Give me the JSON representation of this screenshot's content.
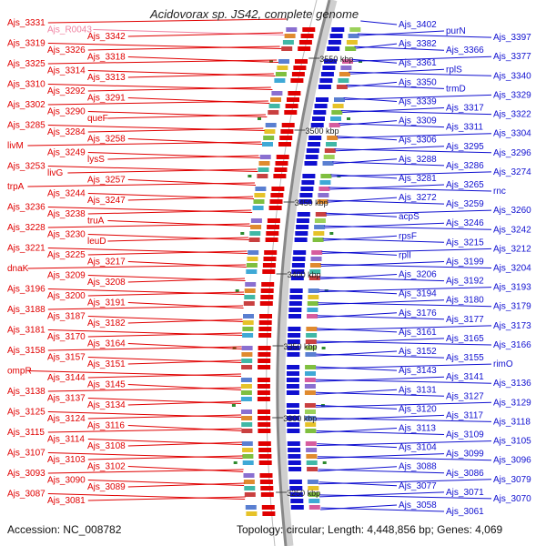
{
  "title": "Acidovorax sp. JS42, complete genome",
  "footer": {
    "accession": "Accession: NC_008782",
    "summary": "Topology: circular; Length: 4,448,856 bp; Genes: 4,069"
  },
  "colors": {
    "reverse_strand": "#e00000",
    "forward_strand": "#1010d0",
    "highlight_label": "#f080a0",
    "backbone": "#888888",
    "marker": "#2e8b2e"
  },
  "scale_labels": [
    "3550 kbp",
    "3500 kbp",
    "3450 kbp",
    "3400 kbp",
    "3350 kbp",
    "3300 kbp",
    "3250 kbp"
  ],
  "left_labels": [
    "Ajs_3331",
    "Ajs_R0043",
    "Ajs_3342",
    "Ajs_3319",
    "Ajs_3326",
    "Ajs_3318",
    "Ajs_3325",
    "Ajs_3314",
    "Ajs_3313",
    "Ajs_3310",
    "Ajs_3292",
    "Ajs_3291",
    "Ajs_3302",
    "Ajs_3290",
    "queF",
    "Ajs_3285",
    "Ajs_3284",
    "Ajs_3258",
    "livM",
    "Ajs_3249",
    "lysS",
    "Ajs_3253",
    "livG",
    "Ajs_3257",
    "trpA",
    "Ajs_3244",
    "Ajs_3247",
    "Ajs_3236",
    "Ajs_3238",
    "truA",
    "Ajs_3228",
    "Ajs_3230",
    "leuD",
    "Ajs_3221",
    "Ajs_3225",
    "Ajs_3217",
    "dnaK",
    "Ajs_3209",
    "Ajs_3208",
    "Ajs_3196",
    "Ajs_3200",
    "Ajs_3191",
    "Ajs_3188",
    "Ajs_3187",
    "Ajs_3182",
    "Ajs_3181",
    "Ajs_3170",
    "Ajs_3164",
    "Ajs_3158",
    "Ajs_3157",
    "Ajs_3151",
    "ompR",
    "Ajs_3144",
    "Ajs_3145",
    "Ajs_3138",
    "Ajs_3137",
    "Ajs_3134",
    "Ajs_3125",
    "Ajs_3124",
    "Ajs_3116",
    "Ajs_3115",
    "Ajs_3114",
    "Ajs_3108",
    "Ajs_3107",
    "Ajs_3103",
    "Ajs_3102",
    "Ajs_3093",
    "Ajs_3090",
    "Ajs_3089",
    "Ajs_3087",
    "Ajs_3081"
  ],
  "right_labels": [
    "Ajs_3402",
    "purN",
    "Ajs_3397",
    "Ajs_3382",
    "Ajs_3366",
    "Ajs_3377",
    "Ajs_3361",
    "rplS",
    "Ajs_3340",
    "Ajs_3350",
    "trmD",
    "Ajs_3329",
    "Ajs_3339",
    "Ajs_3317",
    "Ajs_3322",
    "Ajs_3309",
    "Ajs_3311",
    "Ajs_3304",
    "Ajs_3306",
    "Ajs_3295",
    "Ajs_3296",
    "Ajs_3288",
    "Ajs_3286",
    "Ajs_3274",
    "Ajs_3281",
    "Ajs_3265",
    "rnc",
    "Ajs_3272",
    "Ajs_3259",
    "Ajs_3260",
    "acpS",
    "Ajs_3246",
    "Ajs_3242",
    "rpsF",
    "Ajs_3215",
    "Ajs_3212",
    "rplI",
    "Ajs_3199",
    "Ajs_3204",
    "Ajs_3206",
    "Ajs_3192",
    "Ajs_3193",
    "Ajs_3194",
    "Ajs_3180",
    "Ajs_3179",
    "Ajs_3176",
    "Ajs_3177",
    "Ajs_3173",
    "Ajs_3161",
    "Ajs_3165",
    "Ajs_3166",
    "Ajs_3152",
    "Ajs_3155",
    "rimO",
    "Ajs_3143",
    "Ajs_3141",
    "Ajs_3136",
    "Ajs_3131",
    "Ajs_3127",
    "Ajs_3129",
    "Ajs_3120",
    "Ajs_3117",
    "Ajs_3118",
    "Ajs_3113",
    "Ajs_3109",
    "Ajs_3105",
    "Ajs_3104",
    "Ajs_3099",
    "Ajs_3096",
    "Ajs_3088",
    "Ajs_3086",
    "Ajs_3079",
    "Ajs_3077",
    "Ajs_3071",
    "Ajs_3070",
    "Ajs_3058",
    "Ajs_3061"
  ]
}
